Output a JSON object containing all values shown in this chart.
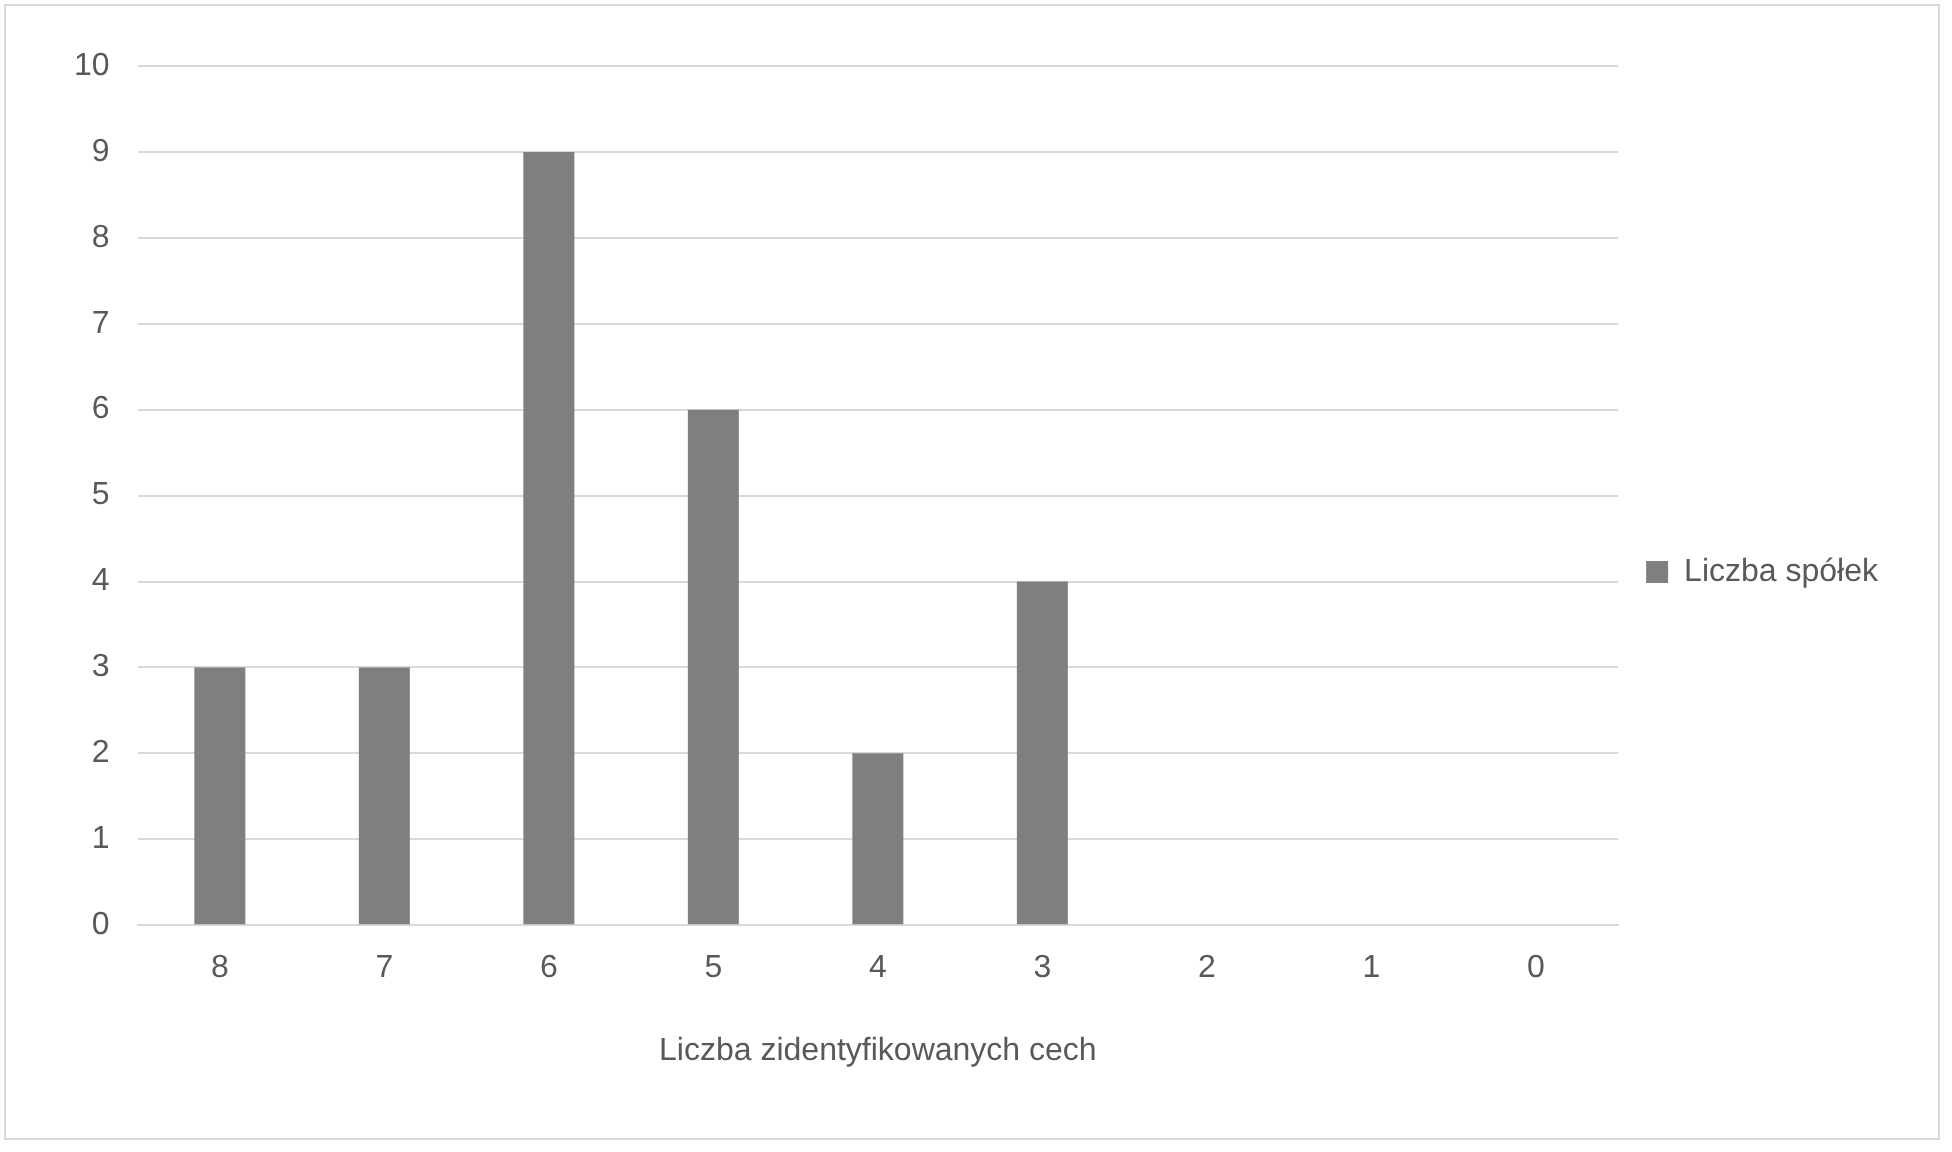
{
  "chart_data": {
    "type": "bar",
    "xlabel": "Liczba zidentyfikowanych cech",
    "categories": [
      "8",
      "7",
      "6",
      "5",
      "4",
      "3",
      "2",
      "1",
      "0"
    ],
    "series": [
      {
        "name": "Liczba spółek",
        "color": "#7f7f7f",
        "values": [
          3,
          3,
          9,
          6,
          2,
          4,
          0,
          0,
          0
        ]
      }
    ],
    "ylim": [
      0,
      10
    ],
    "yticks": [
      0,
      1,
      2,
      3,
      4,
      5,
      6,
      7,
      8,
      9,
      10
    ],
    "grid": "y",
    "legend": "right"
  }
}
